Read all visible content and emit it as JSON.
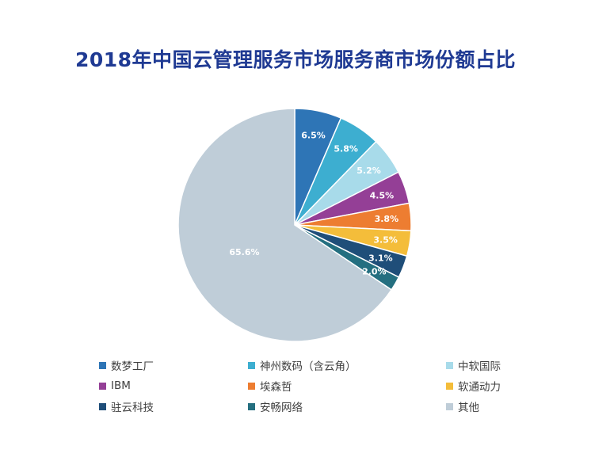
{
  "chart_data": {
    "type": "pie",
    "title": "2018年中国云管理服务市场服务商市场份额占比",
    "slices": [
      {
        "label": "数梦工厂",
        "value": 6.5,
        "display": "6.5%",
        "color": "#2e75b6"
      },
      {
        "label": "神州数码（含云角）",
        "value": 5.8,
        "display": "5.8%",
        "color": "#3daed0"
      },
      {
        "label": "中软国际",
        "value": 5.2,
        "display": "5.2%",
        "color": "#a8dbea"
      },
      {
        "label": "IBM",
        "value": 4.5,
        "display": "4.5%",
        "color": "#943f96"
      },
      {
        "label": "埃森哲",
        "value": 3.8,
        "display": "3.8%",
        "color": "#ed7d31"
      },
      {
        "label": "软通动力",
        "value": 3.5,
        "display": "3.5%",
        "color": "#f4bd3a"
      },
      {
        "label": "驻云科技",
        "value": 3.1,
        "display": "3.1%",
        "color": "#1f4e79"
      },
      {
        "label": "安畅网络",
        "value": 2.0,
        "display": "2.0%",
        "color": "#246f80"
      },
      {
        "label": "其他",
        "value": 65.6,
        "display": "65.6%",
        "color": "#bfcdd8"
      }
    ],
    "legend_placement": "bottom"
  }
}
